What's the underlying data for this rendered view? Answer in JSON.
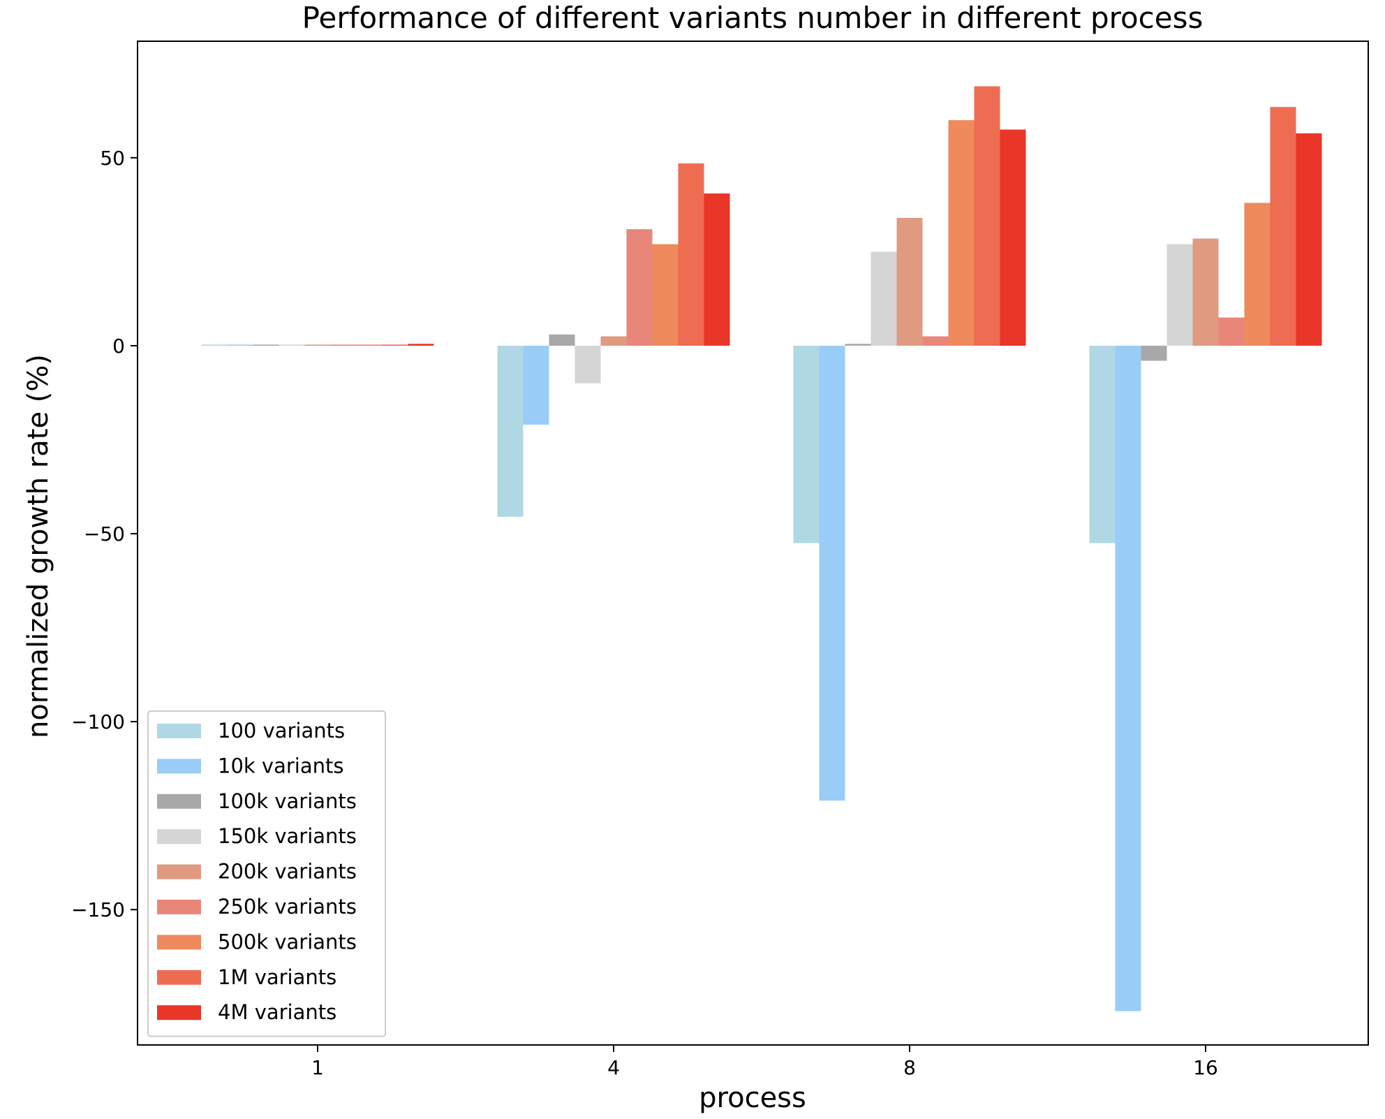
{
  "chart_data": {
    "type": "bar",
    "title": "Performance of different variants number in different process",
    "xlabel": "process",
    "ylabel": "normalized growth rate (%)",
    "categories": [
      "1",
      "4",
      "8",
      "16"
    ],
    "ylim": [
      -186,
      81
    ],
    "yticks": [
      50,
      0,
      -50,
      -100,
      -150
    ],
    "ytick_labels": [
      "50",
      "0",
      "−50",
      "−100",
      "−150"
    ],
    "grid": false,
    "legend_position": "lower-left",
    "series": [
      {
        "name": "100 variants",
        "color": "#b0d8e4",
        "values": [
          0.3,
          -45.5,
          -52.5,
          -52.5
        ]
      },
      {
        "name": "10k variants",
        "color": "#99ccf6",
        "values": [
          0.3,
          -21,
          -121,
          -177
        ]
      },
      {
        "name": "100k variants",
        "color": "#a8a8a8",
        "values": [
          0.3,
          3,
          0.5,
          -4
        ]
      },
      {
        "name": "150k variants",
        "color": "#d5d5d5",
        "values": [
          0.3,
          -10,
          25,
          27
        ]
      },
      {
        "name": "200k variants",
        "color": "#df9a80",
        "values": [
          0.3,
          2.5,
          34,
          28.5
        ]
      },
      {
        "name": "250k variants",
        "color": "#e9867a",
        "values": [
          0.3,
          31,
          2.5,
          7.5
        ]
      },
      {
        "name": "500k variants",
        "color": "#ee8a5c",
        "values": [
          0.3,
          27,
          60,
          38
        ]
      },
      {
        "name": "1M variants",
        "color": "#ee6c52",
        "values": [
          0.3,
          48.5,
          69,
          63.5
        ]
      },
      {
        "name": "4M variants",
        "color": "#e93629",
        "values": [
          0.5,
          40.5,
          57.5,
          56.5
        ]
      }
    ]
  }
}
